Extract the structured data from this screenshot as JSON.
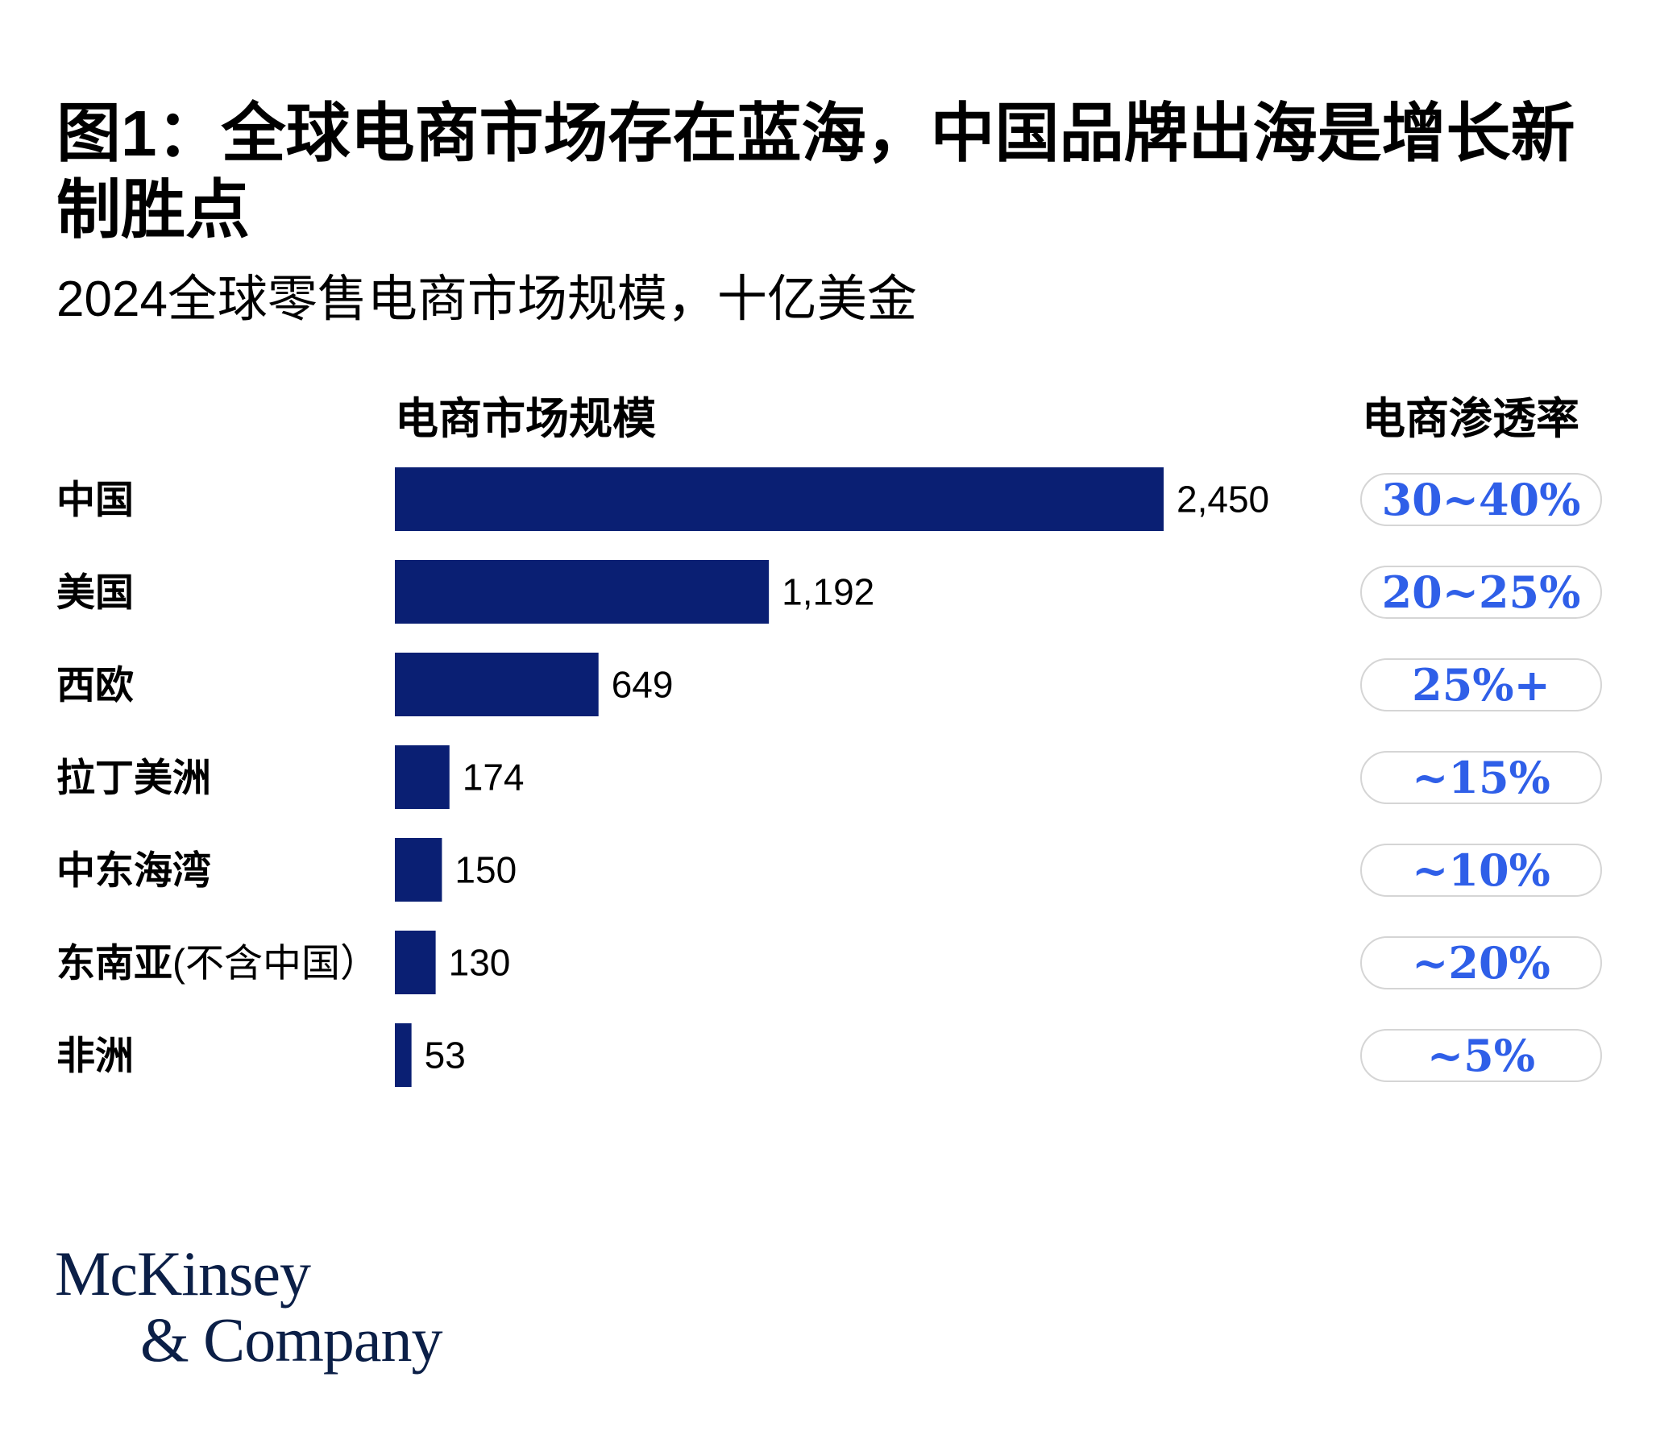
{
  "title": "图1：全球电商市场存在蓝海，中国品牌出海是增长新制胜点",
  "subtitle": "2024全球零售电商市场规模，十亿美金",
  "columns": {
    "size": "电商市场规模",
    "penetration": "电商渗透率"
  },
  "chart_data": {
    "type": "bar",
    "orientation": "horizontal",
    "categories": [
      "中国",
      "美国",
      "西欧",
      "拉丁美洲",
      "中东海湾",
      "东南亚(不含中国）",
      "非洲"
    ],
    "values": [
      2450,
      1192,
      649,
      174,
      150,
      130,
      53
    ],
    "value_labels": [
      "2,450",
      "1,192",
      "649",
      "174",
      "150",
      "130",
      "53"
    ],
    "penetration": [
      "30~40%",
      "20~25%",
      "25%+",
      "~15%",
      "~10%",
      "~20%",
      "~5%"
    ],
    "title": "图1：全球电商市场存在蓝海，中国品牌出海是增长新制胜点",
    "subtitle": "2024全球零售电商市场规模，十亿美金",
    "xlabel": "",
    "ylabel": "",
    "grid": false,
    "bar_color": "#0a1f73",
    "penetration_color": "#2f5fe8"
  },
  "logo": {
    "line1": "McKinsey",
    "line2": "& Company"
  }
}
